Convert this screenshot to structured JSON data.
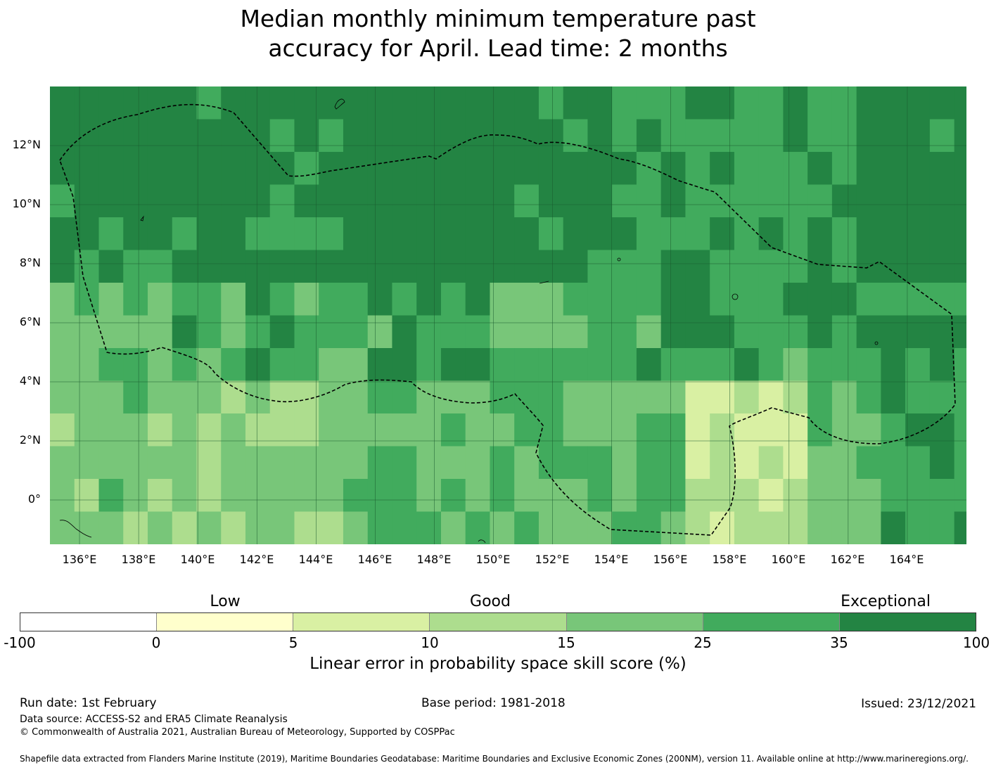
{
  "title_line1": "Median monthly minimum temperature past",
  "title_line2": "accuracy for April. Lead time: 2 months",
  "map": {
    "lon_min": 135,
    "lon_max": 166,
    "lat_min": -1.5,
    "lat_max": 14,
    "lat_labels": [
      "12°N",
      "10°N",
      "8°N",
      "6°N",
      "4°N",
      "2°N",
      "0°"
    ],
    "lon_labels": [
      "136°E",
      "138°E",
      "140°E",
      "142°E",
      "144°E",
      "146°E",
      "148°E",
      "150°E",
      "152°E",
      "154°E",
      "156°E",
      "158°E",
      "160°E",
      "162°E",
      "164°E"
    ],
    "grid_color": "#1a5a2e",
    "boundary": "dashed EEZ outline, Federated States of Micronesia"
  },
  "colorbar": {
    "categories": [
      "Low",
      "Good",
      "Exceptional"
    ],
    "ticks": [
      "-100",
      "0",
      "5",
      "10",
      "15",
      "25",
      "35",
      "100"
    ],
    "colors": [
      "#ffffff",
      "#ffffcc",
      "#d9f0a3",
      "#addd8e",
      "#78c679",
      "#41ab5d",
      "#238443"
    ],
    "label": "Linear error in probability space skill score (%)"
  },
  "footer": {
    "run_date": "Run date: 1st February",
    "base_period": "Base period: 1981-2018",
    "issued": "Issued: 23/12/2021",
    "data_source": "Data source: ACCESS-S2 and ERA5 Climate Reanalysis",
    "copyright": "© Commonwealth of Australia 2021, Australian Bureau of Meteorology, Supported by COSPPac",
    "shapefile": "Shapefile data extracted from Flanders Marine Institute (2019), Maritime Boundaries Geodatabase: Maritime Boundaries and Exclusive Economic Zones (200NM), version 11. Available online at http://www.marineregions.org/."
  }
}
